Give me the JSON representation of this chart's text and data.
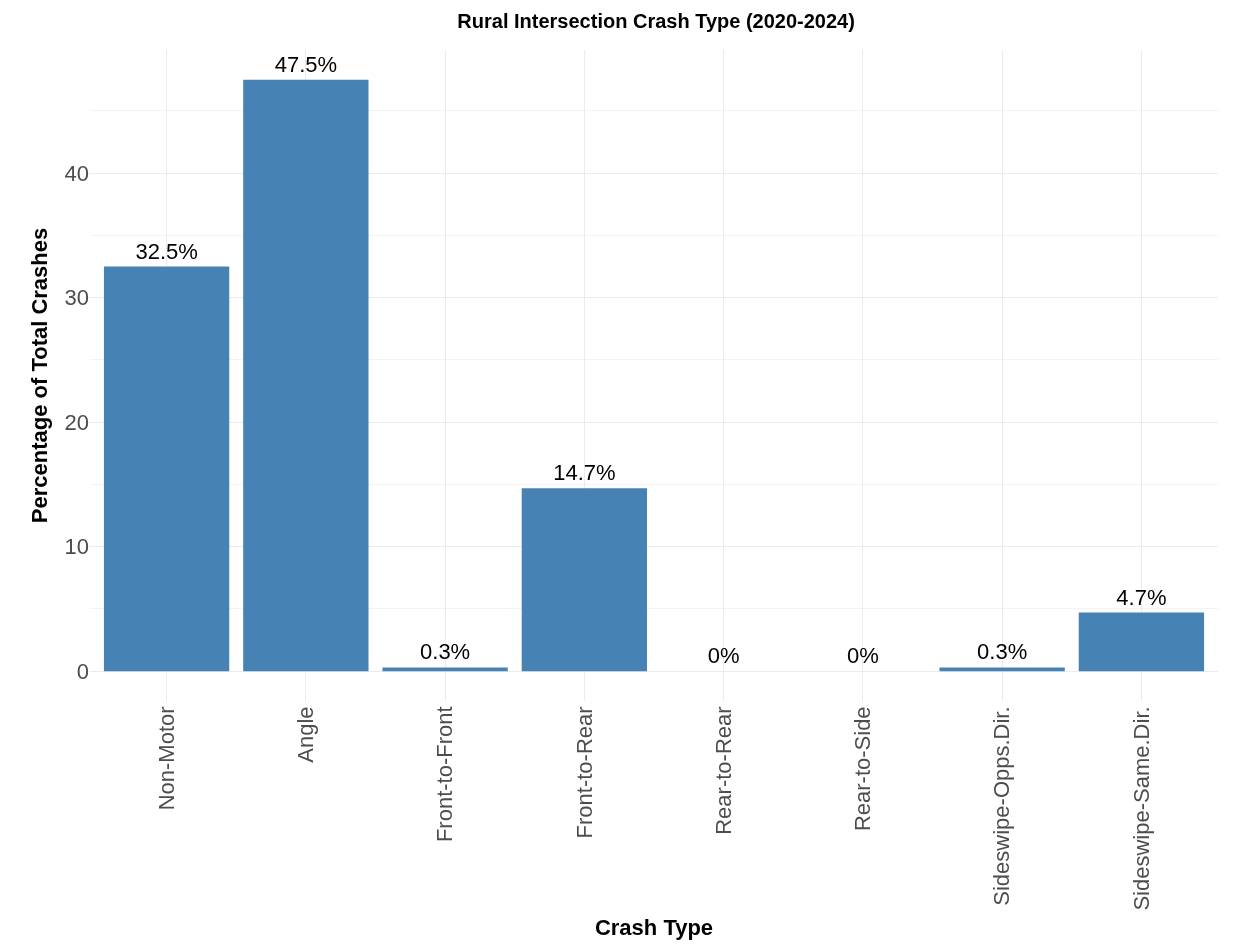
{
  "chart_data": {
    "type": "bar",
    "title": "Rural Intersection Crash Type (2020-2024)",
    "xlabel": "Crash Type",
    "ylabel": "Percentage of Total Crashes",
    "categories": [
      "Non-Motor",
      "Angle",
      "Front-to-Front",
      "Front-to-Rear",
      "Rear-to-Rear",
      "Rear-to-Side",
      "Sideswipe-Opps.Dir.",
      "Sideswipe-Same.Dir."
    ],
    "values": [
      32.5,
      47.5,
      0.3,
      14.7,
      0,
      0,
      0.3,
      4.7
    ],
    "value_labels": [
      "32.5%",
      "47.5%",
      "0.3%",
      "14.7%",
      "0%",
      "0%",
      "0.3%",
      "4.7%"
    ],
    "color": "#4682b4",
    "ylim": [
      -2.4,
      49.9
    ],
    "yticks": [
      0,
      10,
      20,
      30,
      40
    ],
    "grid": true,
    "legend": false
  }
}
